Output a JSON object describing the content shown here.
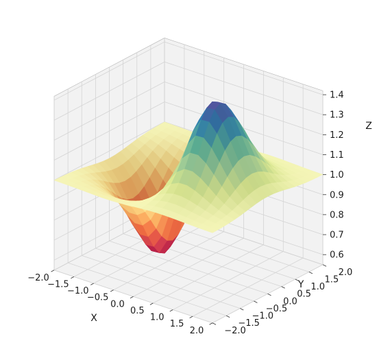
{
  "chart_data": {
    "type": "surface3d",
    "title": "",
    "xlabel": "X",
    "ylabel": "Y",
    "zlabel": "Z",
    "x_ticks": [
      "−2.0",
      "−1.5",
      "−1.0",
      "−0.5",
      "0.0",
      "0.5",
      "1.0",
      "1.5",
      "2.0"
    ],
    "y_ticks": [
      "−2.0",
      "−1.5",
      "−1.0",
      "−0.5",
      "0.0",
      "0.5",
      "1.0",
      "1.5",
      "2.0"
    ],
    "z_ticks": [
      "0.6",
      "0.7",
      "0.8",
      "0.9",
      "1.0",
      "1.1",
      "1.2",
      "1.3",
      "1.4"
    ],
    "xlim": [
      -2,
      2
    ],
    "ylim": [
      -2,
      2
    ],
    "zlim": [
      0.55,
      1.42
    ],
    "grid": true,
    "colormap": "Spectral",
    "surface": {
      "function": "z = 1 + x·exp(−(x² + y²))",
      "x_range": [
        -2,
        2
      ],
      "y_range": [
        -2,
        2
      ],
      "samples_per_axis": 21,
      "z_min": 0.571,
      "z_max": 1.429
    }
  },
  "colors": {
    "pane_fill": "#f2f2f2",
    "grid_line": "#d4d4d4",
    "pane_edge": "#b5b5b5",
    "text": "#1a1a1a"
  }
}
